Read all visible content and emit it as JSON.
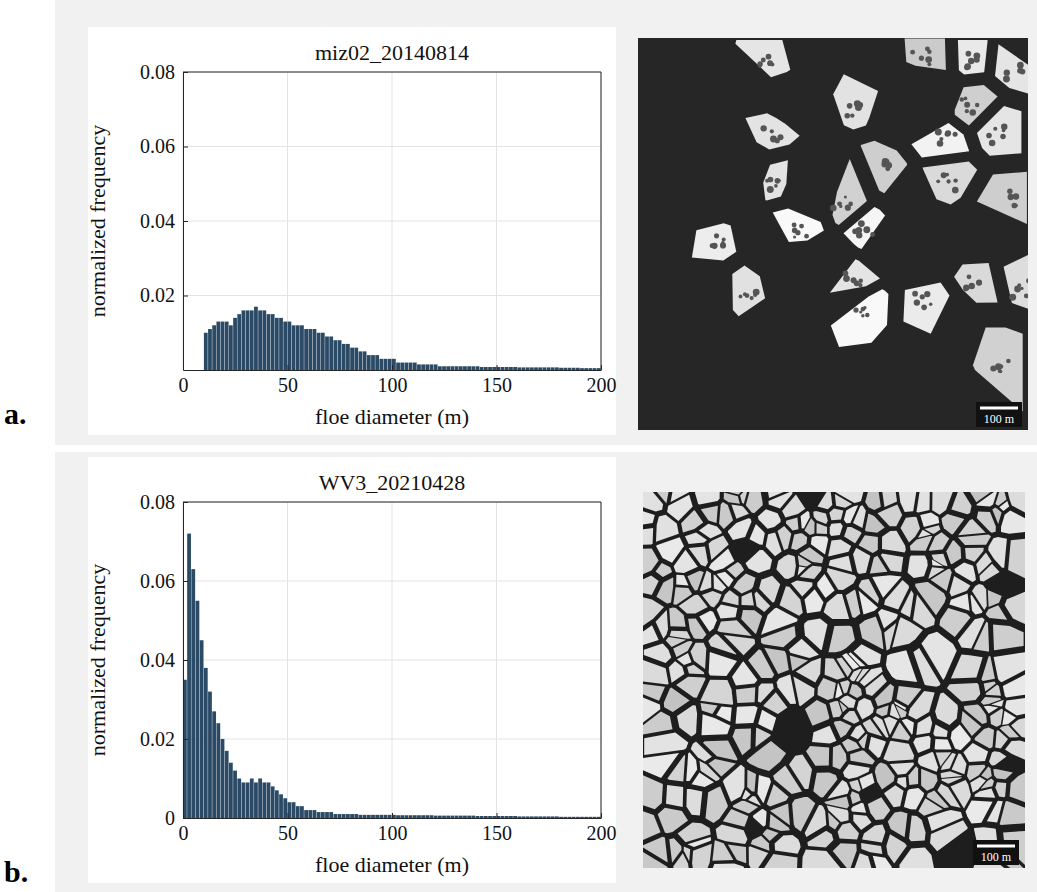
{
  "chart_data": [
    {
      "type": "histogram",
      "title": "miz02_20140814",
      "xlabel": "floe diameter (m)",
      "ylabel": "normalized frequency",
      "panel_label": "a.",
      "annotations": [
        "100 m"
      ],
      "color": "#2b4a66",
      "grid": true,
      "xlim": [
        0,
        200
      ],
      "ylim": [
        0,
        0.08
      ],
      "xticks": [
        0,
        50,
        100,
        150,
        200
      ],
      "yticks": [
        0.02,
        0.04,
        0.06,
        0.08
      ],
      "bins": [
        0,
        2,
        4,
        6,
        8,
        10,
        12,
        14,
        16,
        18,
        20,
        22,
        24,
        26,
        28,
        30,
        32,
        34,
        36,
        38,
        40,
        42,
        44,
        46,
        48,
        50,
        52,
        54,
        56,
        58,
        60,
        62,
        64,
        66,
        68,
        70,
        72,
        74,
        76,
        78,
        80,
        82,
        84,
        86,
        88,
        90,
        92,
        94,
        96,
        98,
        100,
        102,
        104,
        106,
        108,
        110,
        112,
        114,
        116,
        118,
        120,
        122,
        124,
        126,
        128,
        130,
        132,
        134,
        136,
        138,
        140,
        142,
        144,
        146,
        148,
        150,
        152,
        154,
        156,
        158,
        160,
        162,
        164,
        166,
        168,
        170,
        172,
        174,
        176,
        178,
        180,
        182,
        184,
        186,
        188,
        190,
        192,
        194,
        196,
        198,
        200
      ],
      "values": [
        0,
        0,
        0,
        0,
        0,
        0.01,
        0.011,
        0.012,
        0.013,
        0.013,
        0.013,
        0.012,
        0.014,
        0.015,
        0.016,
        0.016,
        0.016,
        0.017,
        0.016,
        0.016,
        0.015,
        0.015,
        0.014,
        0.014,
        0.013,
        0.013,
        0.012,
        0.012,
        0.012,
        0.011,
        0.011,
        0.011,
        0.01,
        0.01,
        0.009,
        0.009,
        0.008,
        0.008,
        0.007,
        0.007,
        0.006,
        0.006,
        0.005,
        0.005,
        0.004,
        0.004,
        0.004,
        0.003,
        0.003,
        0.003,
        0.003,
        0.002,
        0.002,
        0.002,
        0.002,
        0.002,
        0.0015,
        0.0015,
        0.0015,
        0.0015,
        0.0015,
        0.001,
        0.001,
        0.001,
        0.001,
        0.001,
        0.001,
        0.001,
        0.001,
        0.001,
        0.001,
        0.0008,
        0.0008,
        0.0008,
        0.0008,
        0.0008,
        0.0008,
        0.0008,
        0.0008,
        0.0008,
        0.0007,
        0.0007,
        0.0007,
        0.0007,
        0.0007,
        0.0007,
        0.0007,
        0.0007,
        0.0007,
        0.0007,
        0.0006,
        0.0006,
        0.0006,
        0.0006,
        0.0006,
        0.0005,
        0.0005,
        0.0005,
        0.0005,
        0.0005
      ]
    },
    {
      "type": "histogram",
      "title": "WV3_20210428",
      "xlabel": "floe diameter (m)",
      "ylabel": "normalized frequency",
      "panel_label": "b.",
      "annotations": [
        "100 m"
      ],
      "color": "#2b4a66",
      "grid": true,
      "xlim": [
        0,
        200
      ],
      "ylim": [
        0,
        0.08
      ],
      "xticks": [
        0,
        50,
        100,
        150,
        200
      ],
      "yticks": [
        0,
        0.02,
        0.04,
        0.06,
        0.08
      ],
      "bins": [
        0,
        2,
        4,
        6,
        8,
        10,
        12,
        14,
        16,
        18,
        20,
        22,
        24,
        26,
        28,
        30,
        32,
        34,
        36,
        38,
        40,
        42,
        44,
        46,
        48,
        50,
        52,
        54,
        56,
        58,
        60,
        62,
        64,
        66,
        68,
        70,
        72,
        74,
        76,
        78,
        80,
        82,
        84,
        86,
        88,
        90,
        92,
        94,
        96,
        98,
        100,
        102,
        104,
        106,
        108,
        110,
        112,
        114,
        116,
        118,
        120,
        122,
        124,
        126,
        128,
        130,
        132,
        134,
        136,
        138,
        140,
        142,
        144,
        146,
        148,
        150,
        152,
        154,
        156,
        158,
        160,
        162,
        164,
        166,
        168,
        170,
        172,
        174,
        176,
        178,
        180,
        182,
        184,
        186,
        188,
        190,
        192,
        194,
        196,
        198,
        200
      ],
      "values": [
        0.035,
        0.072,
        0.063,
        0.055,
        0.045,
        0.038,
        0.032,
        0.027,
        0.024,
        0.02,
        0.017,
        0.014,
        0.012,
        0.01,
        0.009,
        0.009,
        0.01,
        0.009,
        0.01,
        0.009,
        0.009,
        0.008,
        0.007,
        0.006,
        0.005,
        0.004,
        0.004,
        0.003,
        0.003,
        0.002,
        0.002,
        0.002,
        0.0015,
        0.0015,
        0.0015,
        0.0015,
        0.001,
        0.001,
        0.001,
        0.001,
        0.001,
        0.001,
        0.0008,
        0.0008,
        0.0008,
        0.0008,
        0.0008,
        0.0008,
        0.0008,
        0.0008,
        0.0008,
        0.0007,
        0.0007,
        0.0007,
        0.0007,
        0.0007,
        0.0007,
        0.0007,
        0.0007,
        0.0007,
        0.0006,
        0.0006,
        0.0006,
        0.0006,
        0.0006,
        0.0006,
        0.0006,
        0.0006,
        0.0006,
        0.0006,
        0.0005,
        0.0005,
        0.0005,
        0.0005,
        0.0005,
        0.0005,
        0.0005,
        0.0005,
        0.0005,
        0.0005,
        0.0004,
        0.0004,
        0.0004,
        0.0004,
        0.0004,
        0.0004,
        0.0004,
        0.0004,
        0.0004,
        0.0004,
        0.0003,
        0.0003,
        0.0003,
        0.0003,
        0.0003,
        0.0003,
        0.0003,
        0.0003,
        0.0003,
        0.0003
      ]
    }
  ]
}
